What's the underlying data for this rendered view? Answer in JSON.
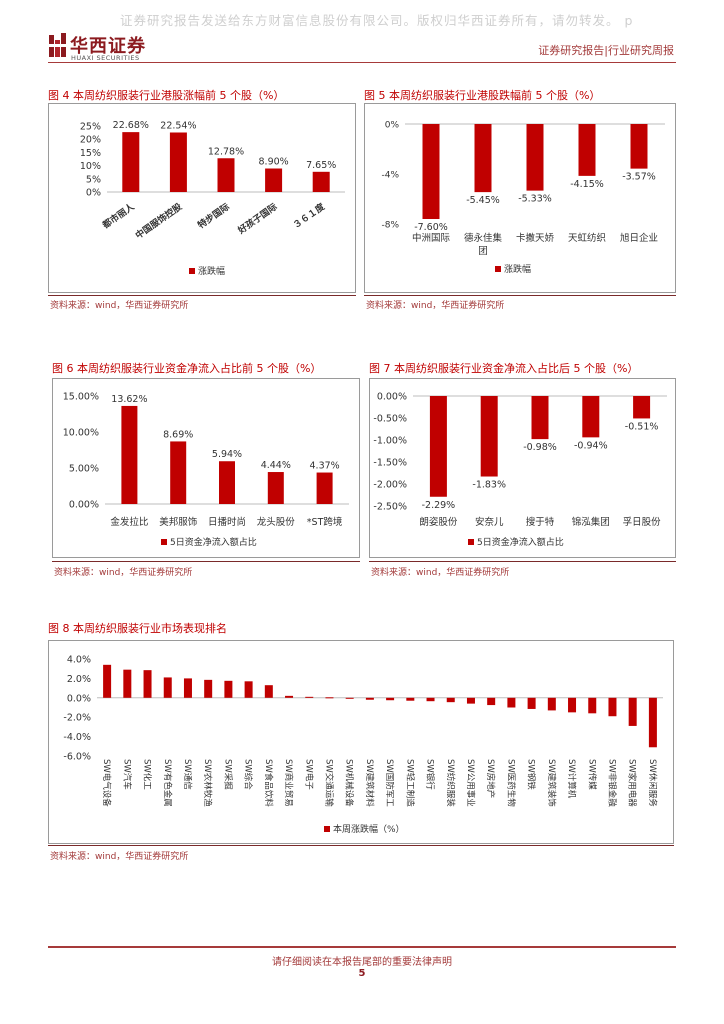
{
  "watermark": "证券研究报告发送给东方财富信息股份有限公司。版权归华西证券所有，请勿转发。 p",
  "logo": {
    "cn": "华西证券",
    "en": "HUAXI SECURITIES"
  },
  "header": {
    "right": "证券研究报告|行业研究周报"
  },
  "colors": {
    "bar": "#c00000",
    "title": "#c00000",
    "brand": "#8c1a1f"
  },
  "figures": {
    "f4": {
      "title": "图 4 本周纺织服装行业港股涨幅前 5 个股（%）",
      "source": "资料来源：wind，华西证券研究所"
    },
    "f5": {
      "title": "图 5 本周纺织服装行业港股跌幅前 5 个股（%）",
      "source": "资料来源：wind，华西证券研究所"
    },
    "f6": {
      "title": "图 6 本周纺织服装行业资金净流入占比前 5 个股（%）",
      "source": "资料来源：wind，华西证券研究所"
    },
    "f7": {
      "title": "图 7 本周纺织服装行业资金净流入占比后 5 个股（%）",
      "source": "资料来源：wind，华西证券研究所"
    },
    "f8": {
      "title": "图 8 本周纺织服装行业市场表现排名",
      "source": "资料来源：wind，华西证券研究所"
    }
  },
  "chart_data": [
    {
      "id": "c4",
      "type": "bar",
      "title": "图 4 本周纺织服装行业港股涨幅前 5 个股（%）",
      "categories": [
        "都市丽人",
        "中国服饰控股",
        "特步国际",
        "好孩子国际",
        "３６１度"
      ],
      "values": [
        22.68,
        22.54,
        12.78,
        8.9,
        7.65
      ],
      "value_labels": [
        "22.68%",
        "22.54%",
        "12.78%",
        "8.90%",
        "7.65%"
      ],
      "ylim": [
        0,
        25
      ],
      "yticks": [
        0,
        5,
        10,
        15,
        20,
        25
      ],
      "ytick_labels": [
        "0%",
        "5%",
        "10%",
        "15%",
        "20%",
        "25%"
      ],
      "legend": "涨跌幅",
      "legend_position": "bottom"
    },
    {
      "id": "c5",
      "type": "bar",
      "title": "图 5 本周纺织服装行业港股跌幅前 5 个股（%）",
      "categories": [
        "中洲国际",
        "德永佳集团",
        "卡撒天娇",
        "天虹纺织",
        "旭日企业"
      ],
      "values": [
        -7.6,
        -5.45,
        -5.33,
        -4.15,
        -3.57
      ],
      "value_labels": [
        "-7.60%",
        "-5.45%",
        "-5.33%",
        "-4.15%",
        "-3.57%"
      ],
      "ylim": [
        -8,
        0
      ],
      "yticks": [
        0,
        -4,
        -8
      ],
      "ytick_labels": [
        "0%",
        "-4%",
        "-8%"
      ],
      "legend": "涨跌幅",
      "legend_position": "bottom"
    },
    {
      "id": "c6",
      "type": "bar",
      "title": "图 6 本周纺织服装行业资金净流入占比前 5 个股（%）",
      "categories": [
        "金发拉比",
        "美邦服饰",
        "日播时尚",
        "龙头股份",
        "*ST跨境"
      ],
      "values": [
        13.62,
        8.69,
        5.94,
        4.44,
        4.37
      ],
      "value_labels": [
        "13.62%",
        "8.69%",
        "5.94%",
        "4.44%",
        "4.37%"
      ],
      "ylim": [
        0,
        15
      ],
      "yticks": [
        0,
        5,
        10,
        15
      ],
      "ytick_labels": [
        "0.00%",
        "5.00%",
        "10.00%",
        "15.00%"
      ],
      "legend": "5日资金净流入额占比",
      "legend_position": "bottom"
    },
    {
      "id": "c7",
      "type": "bar",
      "title": "图 7 本周纺织服装行业资金净流入占比后 5 个股（%）",
      "categories": [
        "朗姿股份",
        "安奈儿",
        "搜于特",
        "锦泓集团",
        "孚日股份"
      ],
      "values": [
        -2.29,
        -1.83,
        -0.98,
        -0.94,
        -0.51
      ],
      "value_labels": [
        "-2.29%",
        "-1.83%",
        "-0.98%",
        "-0.94%",
        "-0.51%"
      ],
      "ylim": [
        -2.5,
        0
      ],
      "yticks": [
        0,
        -0.5,
        -1,
        -1.5,
        -2,
        -2.5
      ],
      "ytick_labels": [
        "0.00%",
        "-0.50%",
        "-1.00%",
        "-1.50%",
        "-2.00%",
        "-2.50%"
      ],
      "legend": "5日资金净流入额占比",
      "legend_position": "bottom"
    },
    {
      "id": "c8",
      "type": "bar",
      "title": "图 8 本周纺织服装行业市场表现排名",
      "categories": [
        "SW电气设备",
        "SW汽车",
        "SW化工",
        "SW有色金属",
        "SW通信",
        "SW农林牧渔",
        "SW采掘",
        "SW综合",
        "SW食品饮料",
        "SW商业贸易",
        "SW电子",
        "SW交通运输",
        "SW机械设备",
        "SW建筑材料",
        "SW国防军工",
        "SW轻工制造",
        "SW银行",
        "SW纺织服装",
        "SW公用事业",
        "SW房地产",
        "SW医药生物",
        "SW钢铁",
        "SW建筑装饰",
        "SW计算机",
        "SW传媒",
        "SW非银金融",
        "SW家用电器",
        "SW休闲服务"
      ],
      "values": [
        3.4,
        2.9,
        2.85,
        2.1,
        2.0,
        1.85,
        1.75,
        1.7,
        1.3,
        0.2,
        0.1,
        0.05,
        -0.1,
        -0.2,
        -0.25,
        -0.3,
        -0.35,
        -0.45,
        -0.6,
        -0.75,
        -1.0,
        -1.15,
        -1.3,
        -1.5,
        -1.6,
        -1.9,
        -2.9,
        -5.1
      ],
      "ylim": [
        -6,
        4
      ],
      "yticks": [
        4,
        2,
        0,
        -2,
        -4,
        -6
      ],
      "ytick_labels": [
        "4.0%",
        "2.0%",
        "0.0%",
        "-2.0%",
        "-4.0%",
        "-6.0%"
      ],
      "legend": "本周涨跌幅（%）",
      "legend_position": "bottom"
    }
  ],
  "footer": {
    "disclaimer": "请仔细阅读在本报告尾部的重要法律声明",
    "page": "5"
  }
}
